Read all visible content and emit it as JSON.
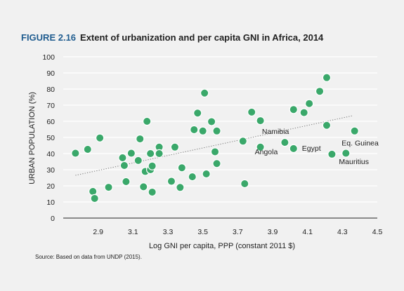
{
  "figure": {
    "number": "FIGURE 2.16",
    "title": "Extent of urbanization and per capita GNI in Africa, 2014",
    "source": "Source: Based on data from UNDP (2015)."
  },
  "colors": {
    "background": "#f1f1f1",
    "marker_fill": "#3aa86a",
    "marker_stroke": "#ffffff",
    "trend": "#777777",
    "figure_number": "#1f5c8f"
  },
  "chart_data": {
    "type": "scatter",
    "title": "Extent of urbanization and per capita GNI in Africa, 2014",
    "xlabel": "Log GNI per capita, PPP (constant 2011 $)",
    "ylabel": "URBAN POPULATION (%)",
    "xlim": [
      2.7,
      4.5
    ],
    "ylim": [
      0,
      100
    ],
    "xticks": [
      "2.9",
      "3.1",
      "3.3",
      "3.5",
      "3.7",
      "3.9",
      "4.1",
      "4.3",
      "4.5"
    ],
    "yticks": [
      "0",
      "10",
      "20",
      "30",
      "40",
      "50",
      "60",
      "70",
      "80",
      "90",
      "100"
    ],
    "grid": "horizontal",
    "trendline": {
      "style": "dotted",
      "x": [
        2.77,
        4.36
      ],
      "y": [
        26.5,
        63.5
      ]
    },
    "points": [
      {
        "x": 2.77,
        "y": 40.2
      },
      {
        "x": 2.84,
        "y": 42.6
      },
      {
        "x": 2.87,
        "y": 16.5
      },
      {
        "x": 2.88,
        "y": 12.2
      },
      {
        "x": 2.91,
        "y": 49.7
      },
      {
        "x": 2.96,
        "y": 19.1
      },
      {
        "x": 3.04,
        "y": 37.4
      },
      {
        "x": 3.05,
        "y": 32.6
      },
      {
        "x": 3.06,
        "y": 22.6
      },
      {
        "x": 3.09,
        "y": 40.2
      },
      {
        "x": 3.13,
        "y": 35.7
      },
      {
        "x": 3.14,
        "y": 49.1
      },
      {
        "x": 3.16,
        "y": 19.4
      },
      {
        "x": 3.17,
        "y": 28.9
      },
      {
        "x": 3.18,
        "y": 60.0
      },
      {
        "x": 3.2,
        "y": 30.0
      },
      {
        "x": 3.2,
        "y": 40.0
      },
      {
        "x": 3.21,
        "y": 32.3
      },
      {
        "x": 3.21,
        "y": 16.1
      },
      {
        "x": 3.25,
        "y": 44.0
      },
      {
        "x": 3.25,
        "y": 40.0
      },
      {
        "x": 3.32,
        "y": 22.8
      },
      {
        "x": 3.34,
        "y": 44.0
      },
      {
        "x": 3.37,
        "y": 19.0
      },
      {
        "x": 3.38,
        "y": 31.2
      },
      {
        "x": 3.44,
        "y": 25.6
      },
      {
        "x": 3.45,
        "y": 54.8
      },
      {
        "x": 3.47,
        "y": 65.1
      },
      {
        "x": 3.5,
        "y": 54.0
      },
      {
        "x": 3.51,
        "y": 77.5
      },
      {
        "x": 3.52,
        "y": 27.4
      },
      {
        "x": 3.55,
        "y": 59.8
      },
      {
        "x": 3.57,
        "y": 41.1
      },
      {
        "x": 3.58,
        "y": 33.8
      },
      {
        "x": 3.58,
        "y": 54.0
      },
      {
        "x": 3.73,
        "y": 47.7
      },
      {
        "x": 3.74,
        "y": 21.3
      },
      {
        "x": 3.78,
        "y": 65.7
      },
      {
        "x": 3.83,
        "y": 60.4
      },
      {
        "x": 3.83,
        "y": 44.0,
        "label": "Angola"
      },
      {
        "x": 3.97,
        "y": 46.9,
        "label": "Namibia"
      },
      {
        "x": 4.02,
        "y": 67.3
      },
      {
        "x": 4.02,
        "y": 43.1,
        "label": "Egypt"
      },
      {
        "x": 4.08,
        "y": 65.4
      },
      {
        "x": 4.11,
        "y": 71.0
      },
      {
        "x": 4.17,
        "y": 78.6
      },
      {
        "x": 4.21,
        "y": 87.1
      },
      {
        "x": 4.21,
        "y": 57.5
      },
      {
        "x": 4.24,
        "y": 39.6,
        "label": "Mauritius"
      },
      {
        "x": 4.32,
        "y": 40.2,
        "label": "Eq. Guinea"
      },
      {
        "x": 4.37,
        "y": 54.0
      }
    ]
  }
}
